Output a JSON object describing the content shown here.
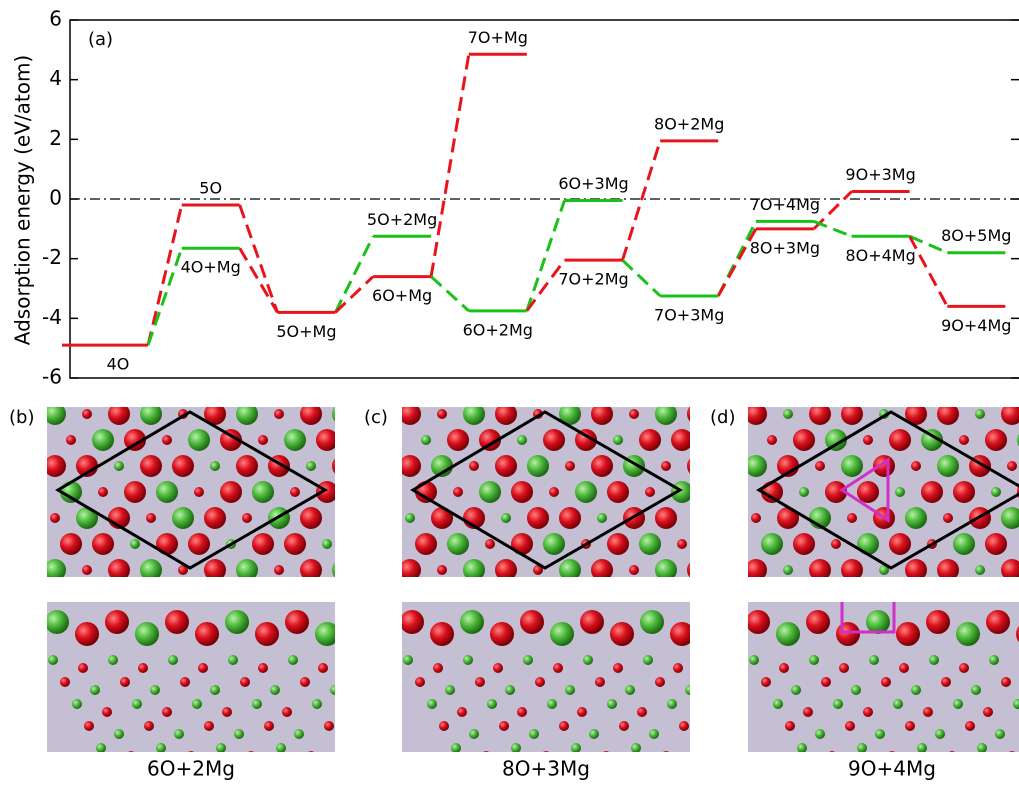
{
  "chart_data": {
    "type": "energy-levels",
    "panel_label": "(a)",
    "ylabel": "Adsorption energy (eV/atom)",
    "ylim": [
      -6,
      6
    ],
    "yticks": [
      -6,
      -4,
      -2,
      0,
      2,
      4,
      6
    ],
    "hline": 0,
    "levels": [
      {
        "label": "4O",
        "value": -4.9,
        "color": "#e8141b"
      },
      {
        "label": "5O",
        "value": -0.2,
        "color": "#e8141b"
      },
      {
        "label": "4O+Mg",
        "value": -1.65,
        "color": "#18c218"
      },
      {
        "label": "5O+Mg",
        "value": -3.8,
        "color": "#e8141b"
      },
      {
        "label": "5O+2Mg",
        "value": -1.25,
        "color": "#18c218"
      },
      {
        "label": "6O+Mg",
        "value": -2.6,
        "color": "#e8141b"
      },
      {
        "label": "7O+Mg",
        "value": 4.85,
        "color": "#e8141b"
      },
      {
        "label": "6O+2Mg",
        "value": -3.75,
        "color": "#18c218"
      },
      {
        "label": "6O+3Mg",
        "value": -0.05,
        "color": "#18c218"
      },
      {
        "label": "7O+2Mg",
        "value": -2.05,
        "color": "#e8141b"
      },
      {
        "label": "8O+2Mg",
        "value": 1.95,
        "color": "#e8141b"
      },
      {
        "label": "7O+3Mg",
        "value": -3.25,
        "color": "#18c218"
      },
      {
        "label": "7O+4Mg",
        "value": -0.75,
        "color": "#18c218"
      },
      {
        "label": "8O+3Mg",
        "value": -1.0,
        "color": "#e8141b"
      },
      {
        "label": "9O+3Mg",
        "value": 0.25,
        "color": "#e8141b"
      },
      {
        "label": "8O+4Mg",
        "value": -1.25,
        "color": "#18c218"
      },
      {
        "label": "8O+5Mg",
        "value": -1.8,
        "color": "#18c218"
      },
      {
        "label": "9O+4Mg",
        "value": -3.6,
        "color": "#e8141b"
      }
    ],
    "links": [
      {
        "from": 0,
        "to": 1,
        "color": "#e8141b"
      },
      {
        "from": 0,
        "to": 2,
        "color": "#18c218"
      },
      {
        "from": 1,
        "to": 3,
        "color": "#e8141b"
      },
      {
        "from": 2,
        "to": 3,
        "color": "#e8141b"
      },
      {
        "from": 3,
        "to": 4,
        "color": "#18c218"
      },
      {
        "from": 3,
        "to": 5,
        "color": "#e8141b"
      },
      {
        "from": 5,
        "to": 6,
        "color": "#e8141b"
      },
      {
        "from": 5,
        "to": 7,
        "color": "#18c218"
      },
      {
        "from": 7,
        "to": 8,
        "color": "#18c218"
      },
      {
        "from": 7,
        "to": 9,
        "color": "#e8141b"
      },
      {
        "from": 9,
        "to": 10,
        "color": "#e8141b"
      },
      {
        "from": 9,
        "to": 11,
        "color": "#18c218"
      },
      {
        "from": 11,
        "to": 12,
        "color": "#18c218"
      },
      {
        "from": 11,
        "to": 13,
        "color": "#e8141b"
      },
      {
        "from": 13,
        "to": 14,
        "color": "#e8141b"
      },
      {
        "from": 12,
        "to": 15,
        "color": "#18c218"
      },
      {
        "from": 15,
        "to": 16,
        "color": "#18c218"
      },
      {
        "from": 15,
        "to": 17,
        "color": "#e8141b"
      }
    ]
  },
  "panels": [
    {
      "label": "(b)",
      "caption": "6O+2Mg"
    },
    {
      "label": "(c)",
      "caption": "8O+3Mg"
    },
    {
      "label": "(d)",
      "caption": "9O+4Mg"
    }
  ]
}
